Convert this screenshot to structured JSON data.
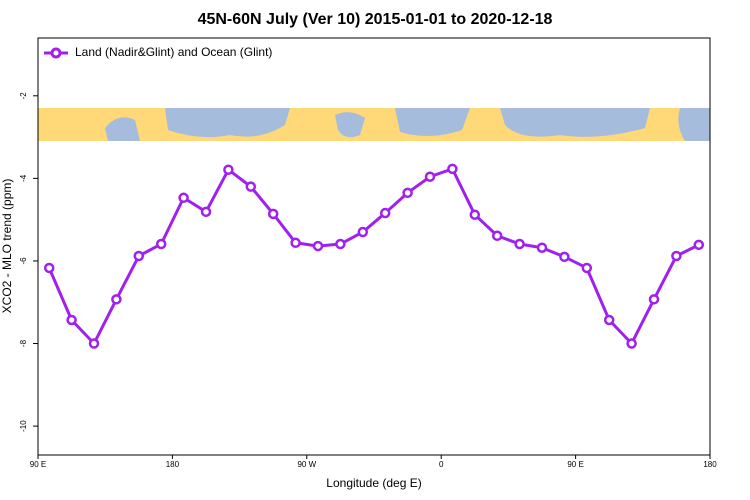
{
  "chart_data": {
    "type": "line",
    "title": "45N-60N July (Ver 10)   2015-01-01 to 2020-12-18",
    "x_label": "Longitude (deg E)",
    "y_label": "XCO2 - MLO trend (ppm)",
    "x": [
      97.5,
      112.5,
      127.5,
      142.5,
      157.5,
      172.5,
      187.5,
      202.5,
      217.5,
      232.5,
      247.5,
      262.5,
      277.5,
      292.5,
      307.5,
      322.5,
      337.5,
      352.5,
      367.5,
      382.5,
      397.5,
      412.5,
      427.5,
      442.5,
      457.5,
      472.5,
      487.5,
      502.5,
      517.5,
      532.5
    ],
    "series": [
      {
        "name": "Land (Nadir&Glint) and Ocean (Glint)",
        "color": "#a020f0",
        "values": [
          -6.17,
          -7.43,
          -8.0,
          -6.93,
          -5.88,
          -5.59,
          -4.47,
          -4.81,
          -3.79,
          -4.2,
          -4.86,
          -5.56,
          -5.64,
          -5.59,
          -5.3,
          -4.84,
          -4.35,
          -3.96,
          -3.77,
          -4.88,
          -5.39,
          -5.59,
          -5.68,
          -5.9,
          -6.17,
          -7.43,
          -8.0,
          -6.93,
          -5.88,
          -5.61
        ]
      }
    ],
    "xlim": [
      90,
      540
    ],
    "xticks": [
      {
        "value": 90,
        "label": "90 E"
      },
      {
        "value": 180,
        "label": "180"
      },
      {
        "value": 270,
        "label": "90 W"
      },
      {
        "value": 360,
        "label": "0"
      },
      {
        "value": 450,
        "label": "90 E"
      },
      {
        "value": 540,
        "label": "180"
      }
    ],
    "ylim": [
      -10.7,
      -0.6
    ],
    "yticks": [
      -10,
      -8,
      -6,
      -4,
      -2
    ],
    "legend": "top-left"
  }
}
